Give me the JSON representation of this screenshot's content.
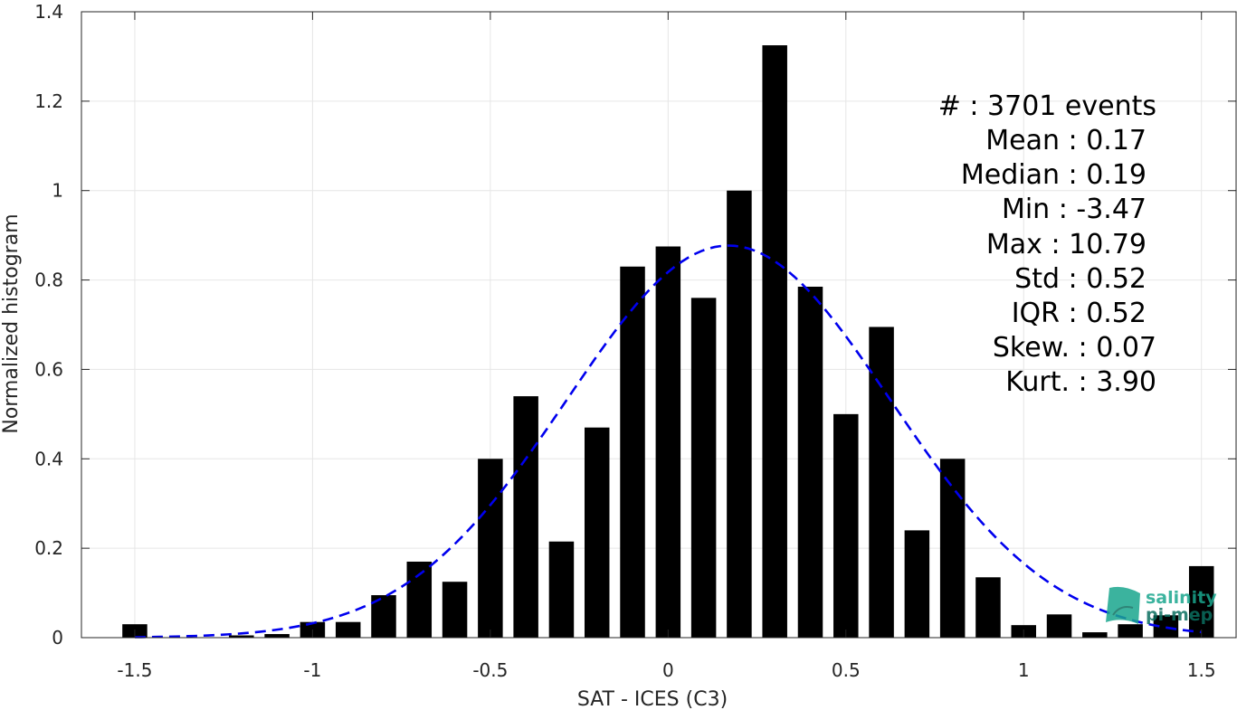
{
  "chart_data": {
    "type": "bar",
    "xlabel": "SAT - ICES (C3)",
    "ylabel": "Normalized histogram",
    "xlim": [
      -1.65,
      1.6
    ],
    "ylim": [
      0,
      1.4
    ],
    "grid": true,
    "x_ticks": [
      -1.5,
      -1,
      -0.5,
      0,
      0.5,
      1,
      1.5
    ],
    "x_tick_labels": [
      "-1.5",
      "-1",
      "-0.5",
      "0",
      "0.5",
      "1",
      "1.5"
    ],
    "y_ticks": [
      0,
      0.2,
      0.4,
      0.6,
      0.8,
      1,
      1.2,
      1.4
    ],
    "y_tick_labels": [
      "0",
      "0.2",
      "0.4",
      "0.6",
      "0.8",
      "1",
      "1.2",
      "1.4"
    ],
    "bar_width": 0.07,
    "bins": [
      {
        "x": -1.5,
        "value": 0.03
      },
      {
        "x": -1.2,
        "value": 0.005
      },
      {
        "x": -1.1,
        "value": 0.008
      },
      {
        "x": -1.0,
        "value": 0.035
      },
      {
        "x": -0.9,
        "value": 0.035
      },
      {
        "x": -0.8,
        "value": 0.095
      },
      {
        "x": -0.7,
        "value": 0.17
      },
      {
        "x": -0.6,
        "value": 0.125
      },
      {
        "x": -0.5,
        "value": 0.4
      },
      {
        "x": -0.4,
        "value": 0.54
      },
      {
        "x": -0.3,
        "value": 0.215
      },
      {
        "x": -0.2,
        "value": 0.47
      },
      {
        "x": -0.1,
        "value": 0.83
      },
      {
        "x": 0.0,
        "value": 0.875
      },
      {
        "x": 0.1,
        "value": 0.76
      },
      {
        "x": 0.2,
        "value": 1.0
      },
      {
        "x": 0.3,
        "value": 1.325
      },
      {
        "x": 0.4,
        "value": 0.785
      },
      {
        "x": 0.5,
        "value": 0.5
      },
      {
        "x": 0.6,
        "value": 0.695
      },
      {
        "x": 0.7,
        "value": 0.24
      },
      {
        "x": 0.8,
        "value": 0.4
      },
      {
        "x": 0.9,
        "value": 0.135
      },
      {
        "x": 1.0,
        "value": 0.028
      },
      {
        "x": 1.1,
        "value": 0.052
      },
      {
        "x": 1.2,
        "value": 0.012
      },
      {
        "x": 1.3,
        "value": 0.03
      },
      {
        "x": 1.4,
        "value": 0.05
      },
      {
        "x": 1.5,
        "value": 0.16
      }
    ],
    "fit_curve": {
      "style": "dashed",
      "color": "#0000ee",
      "mean": 0.17,
      "std": 0.455,
      "peak": 0.877,
      "x_range": [
        -1.5,
        1.5
      ]
    },
    "stats": [
      {
        "label": "#  : 3701 events"
      },
      {
        "label": "Mean : 0.17"
      },
      {
        "label": "Median : 0.19"
      },
      {
        "label": "Min : -3.47"
      },
      {
        "label": "Max : 10.79"
      },
      {
        "label": "Std : 0.52"
      },
      {
        "label": "IQR : 0.52"
      },
      {
        "label": "Skew. : 0.07"
      },
      {
        "label": "Kurt. : 3.90"
      }
    ],
    "colors": {
      "bar": "#000000",
      "fit": "#0000ee",
      "grid": "#e6e6e6",
      "axis": "#262626"
    }
  },
  "logo": {
    "line1": "salinity",
    "line2": "pi-mep",
    "color": "#1aa68e"
  }
}
